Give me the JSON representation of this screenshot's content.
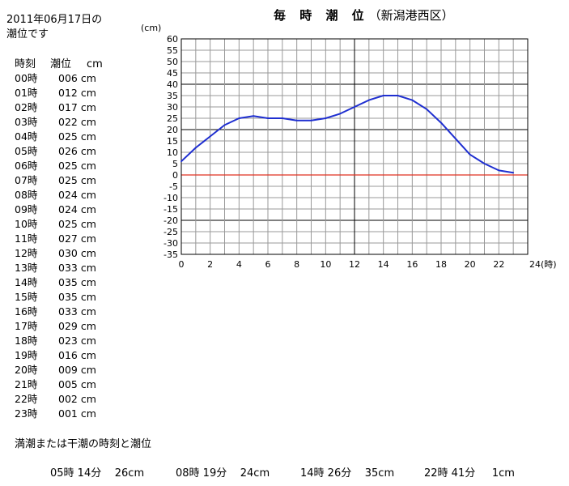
{
  "header": {
    "date_line": "2011年06月17日の",
    "sub_line": "潮位です"
  },
  "table": {
    "col_time": "時刻",
    "col_level": "潮位",
    "col_unit": "cm",
    "rows": [
      {
        "hour": "00時",
        "value": "006 cm"
      },
      {
        "hour": "01時",
        "value": "012 cm"
      },
      {
        "hour": "02時",
        "value": "017 cm"
      },
      {
        "hour": "03時",
        "value": "022 cm"
      },
      {
        "hour": "04時",
        "value": "025 cm"
      },
      {
        "hour": "05時",
        "value": "026 cm"
      },
      {
        "hour": "06時",
        "value": "025 cm"
      },
      {
        "hour": "07時",
        "value": "025 cm"
      },
      {
        "hour": "08時",
        "value": "024 cm"
      },
      {
        "hour": "09時",
        "value": "024 cm"
      },
      {
        "hour": "10時",
        "value": "025 cm"
      },
      {
        "hour": "11時",
        "value": "027 cm"
      },
      {
        "hour": "12時",
        "value": "030 cm"
      },
      {
        "hour": "13時",
        "value": "033 cm"
      },
      {
        "hour": "14時",
        "value": "035 cm"
      },
      {
        "hour": "15時",
        "value": "035 cm"
      },
      {
        "hour": "16時",
        "value": "033 cm"
      },
      {
        "hour": "17時",
        "value": "029 cm"
      },
      {
        "hour": "18時",
        "value": "023 cm"
      },
      {
        "hour": "19時",
        "value": "016 cm"
      },
      {
        "hour": "20時",
        "value": "009 cm"
      },
      {
        "hour": "21時",
        "value": "005 cm"
      },
      {
        "hour": "22時",
        "value": "002 cm"
      },
      {
        "hour": "23時",
        "value": "001 cm"
      }
    ]
  },
  "extremes": {
    "title": "満潮または干潮の時刻と潮位",
    "items": [
      {
        "time": "05時 14分",
        "value": "26cm"
      },
      {
        "time": "08時 19分",
        "value": "24cm"
      },
      {
        "time": "14時 26分",
        "value": "35cm"
      },
      {
        "time": "22時 41分",
        "value": "1cm"
      }
    ]
  },
  "chart_data": {
    "type": "line",
    "title_main": "毎 時 潮 位",
    "title_station": "（新潟港西区）",
    "ylabel": "(cm)",
    "xunit": "24(時)",
    "ylim": [
      -35,
      60
    ],
    "xlim": [
      0,
      24
    ],
    "y_ticks": [
      60,
      55,
      50,
      45,
      40,
      35,
      30,
      25,
      20,
      15,
      10,
      5,
      0,
      -5,
      -10,
      -15,
      -20,
      -25,
      -30,
      -35
    ],
    "x_ticks": [
      0,
      2,
      4,
      6,
      8,
      10,
      12,
      14,
      16,
      18,
      20,
      22
    ],
    "x": [
      0,
      1,
      2,
      3,
      4,
      5,
      6,
      7,
      8,
      9,
      10,
      11,
      12,
      13,
      14,
      15,
      16,
      17,
      18,
      19,
      20,
      21,
      22,
      23
    ],
    "values": [
      6,
      12,
      17,
      22,
      25,
      26,
      25,
      25,
      24,
      24,
      25,
      27,
      30,
      33,
      35,
      35,
      33,
      29,
      23,
      16,
      9,
      5,
      2,
      1
    ],
    "line_color": "#1f2fd0",
    "zero_line_color": "#e03020",
    "grid": true
  }
}
